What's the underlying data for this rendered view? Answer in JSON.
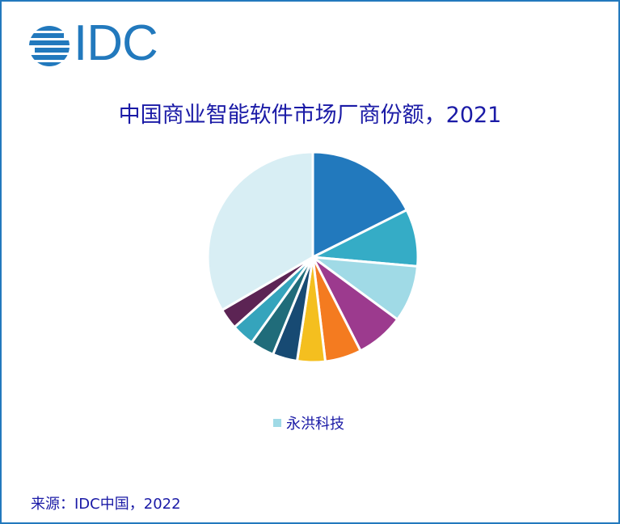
{
  "logo": {
    "text": "IDC",
    "color": "#2279BD"
  },
  "title": "中国商业智能软件市场厂商份额，2021",
  "legend": {
    "label": "永洪科技",
    "color": "#A0DAE6"
  },
  "source": "来源：IDC中国，2022",
  "chart_data": {
    "type": "pie",
    "title": "中国商业智能软件市场厂商份额，2021",
    "start_angle": "12 o'clock, clockwise",
    "legend_position": "bottom",
    "legend_entries": [
      "永洪科技"
    ],
    "slices": [
      {
        "label": "",
        "value": 17.6,
        "color": "#2279BD"
      },
      {
        "label": "",
        "value": 8.8,
        "color": "#35ACC6"
      },
      {
        "label": "永洪科技",
        "value": 8.7,
        "color": "#A0DAE6"
      },
      {
        "label": "",
        "value": 7.4,
        "color": "#9C3A8E"
      },
      {
        "label": "",
        "value": 5.6,
        "color": "#F47B20"
      },
      {
        "label": "",
        "value": 4.3,
        "color": "#F4BF1F"
      },
      {
        "label": "",
        "value": 3.8,
        "color": "#174A73"
      },
      {
        "label": "",
        "value": 3.7,
        "color": "#206C7A"
      },
      {
        "label": "",
        "value": 3.5,
        "color": "#35A4BC"
      },
      {
        "label": "",
        "value": 3.2,
        "color": "#5C2454"
      },
      {
        "label": "",
        "value": 33.4,
        "color": "#D8EEF4"
      }
    ]
  },
  "source_text": "来源：IDC中国，2022"
}
